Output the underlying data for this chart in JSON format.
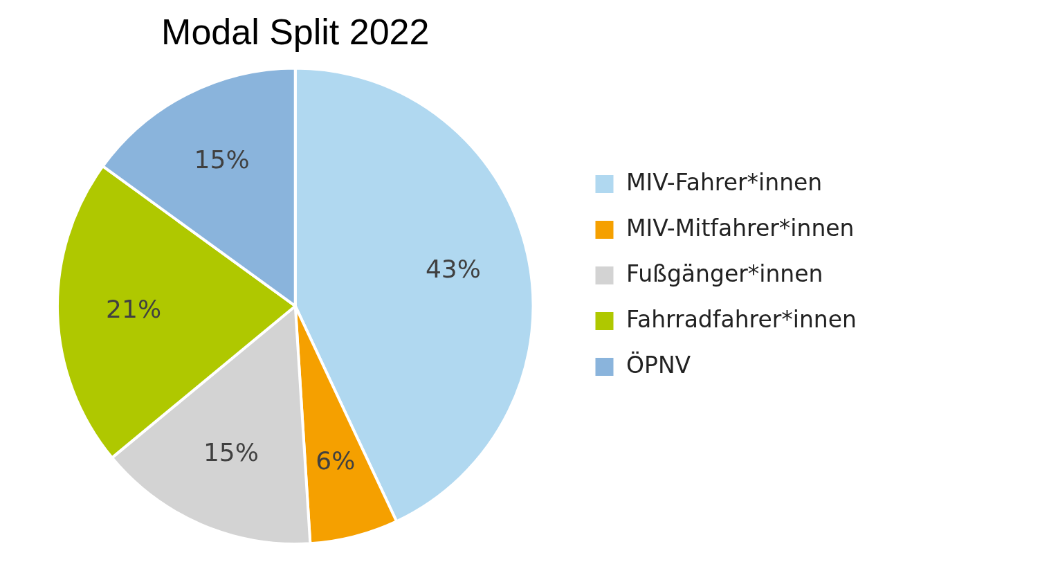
{
  "chart_data": {
    "type": "pie",
    "title": "Modal Split 2022",
    "categories": [
      "MIV-Fahrer*innen",
      "MIV-Mitfahrer*innen",
      "Fußgänger*innen",
      "Fahrradfahrer*innen",
      "ÖPNV"
    ],
    "values": [
      43,
      6,
      15,
      21,
      15
    ],
    "value_labels": [
      "43%",
      "6%",
      "15%",
      "21%",
      "15%"
    ],
    "colors": [
      "#b0d8f0",
      "#f5a000",
      "#d3d3d3",
      "#afc800",
      "#8ab4dc"
    ],
    "legend": "right"
  }
}
